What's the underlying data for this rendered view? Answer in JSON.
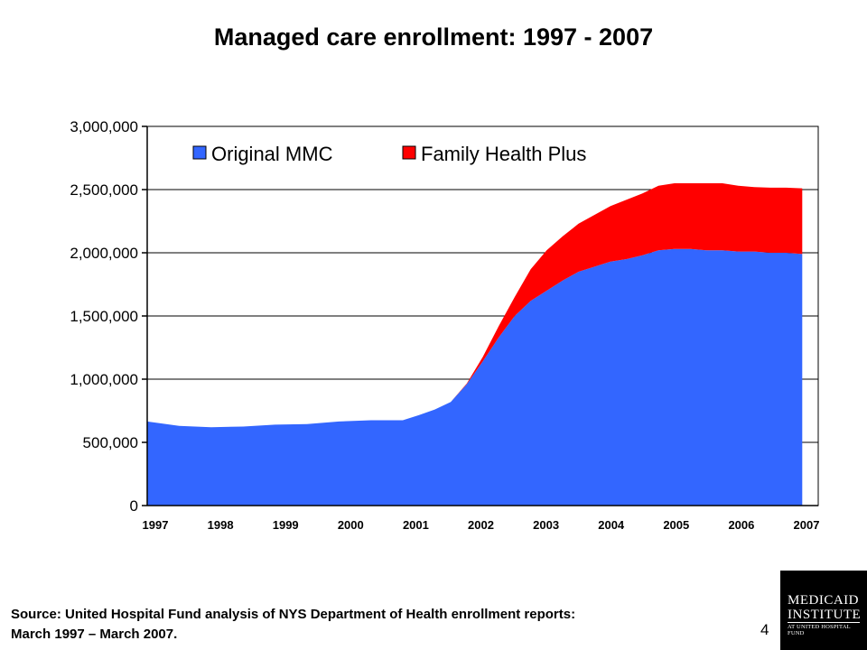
{
  "title": "Managed care enrollment:  1997 - 2007",
  "source_line1": "Source: United Hospital Fund analysis of NYS Department of Health enrollment reports:",
  "source_line2": "March 1997 – March 2007.",
  "page_number": "4",
  "logo": {
    "line1": "MEDICAID",
    "line2": "INSTITUTE",
    "line3": "AT UNITED HOSPITAL FUND"
  },
  "colors": {
    "original_mmc": "#3366FF",
    "family_health_plus": "#FF0000"
  },
  "chart_data": {
    "type": "area",
    "stacked": true,
    "title": "",
    "xlabel": "",
    "ylabel": "",
    "x": [
      1997.0,
      1997.5,
      1998.0,
      1998.5,
      1999.0,
      1999.5,
      2000.0,
      2000.5,
      2001.0,
      2001.25,
      2001.5,
      2001.75,
      2002.0,
      2002.25,
      2002.5,
      2002.75,
      2003.0,
      2003.25,
      2003.5,
      2003.75,
      2004.0,
      2004.25,
      2004.5,
      2004.75,
      2005.0,
      2005.25,
      2005.5,
      2005.75,
      2006.0,
      2006.25,
      2006.5,
      2006.75,
      2007.0,
      2007.25
    ],
    "series": [
      {
        "name": "Original MMC",
        "color": "#3366FF",
        "values": [
          665000,
          630000,
          620000,
          625000,
          640000,
          645000,
          665000,
          675000,
          675000,
          715000,
          760000,
          820000,
          960000,
          1140000,
          1330000,
          1500000,
          1620000,
          1700000,
          1780000,
          1850000,
          1890000,
          1930000,
          1950000,
          1980000,
          2020000,
          2030000,
          2030000,
          2020000,
          2020000,
          2010000,
          2010000,
          2000000,
          2000000,
          1990000
        ]
      },
      {
        "name": "Family Health Plus",
        "color": "#FF0000",
        "values": [
          0,
          0,
          0,
          0,
          0,
          0,
          0,
          0,
          0,
          0,
          0,
          0,
          5000,
          35000,
          90000,
          150000,
          250000,
          320000,
          350000,
          380000,
          410000,
          440000,
          470000,
          490000,
          510000,
          520000,
          520000,
          530000,
          530000,
          520000,
          510000,
          515000,
          515000,
          520000
        ]
      }
    ],
    "y_ticks": [
      "0",
      "500,000",
      "1,000,000",
      "1,500,000",
      "2,000,000",
      "2,500,000",
      "3,000,000"
    ],
    "x_ticks": [
      "1997",
      "1998",
      "1999",
      "2000",
      "2001",
      "2002",
      "2003",
      "2004",
      "2005",
      "2006",
      "2007"
    ],
    "ylim": [
      0,
      3000000
    ],
    "xlim": [
      1997.0,
      2007.5
    ],
    "grid": true,
    "legend_position": "top-left inside plot"
  }
}
